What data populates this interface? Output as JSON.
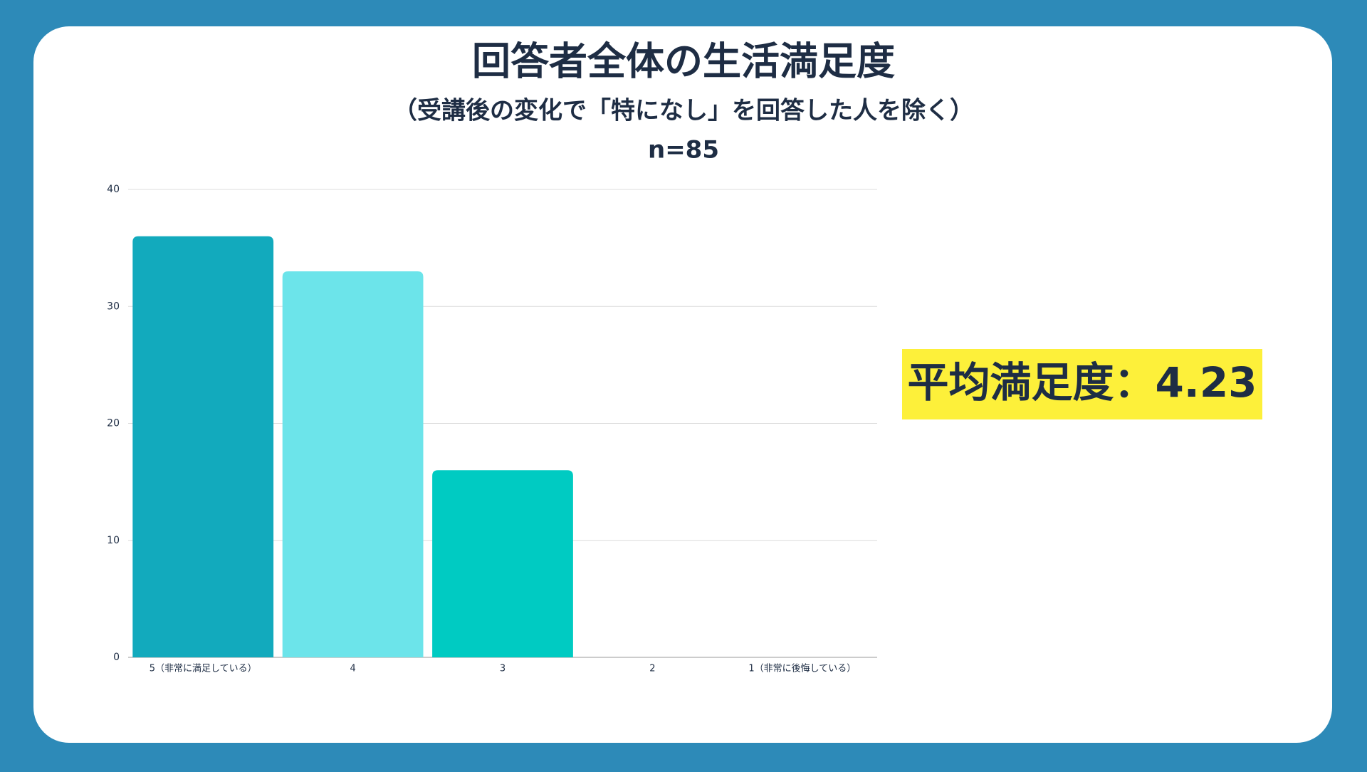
{
  "chart_data": {
    "type": "bar",
    "title": "回答者全体の生活満足度",
    "subtitle": "（受講後の変化で「特になし」を回答した人を除く）",
    "note": "n=85",
    "categories": [
      "5（非常に満足している）",
      "4",
      "3",
      "2",
      "1（非常に後悔している）"
    ],
    "values": [
      36,
      33,
      16,
      0,
      0
    ],
    "colors": [
      "#12aabd",
      "#6ce4ea",
      "#00cbc2"
    ],
    "ylim": [
      0,
      40
    ],
    "yticks": [
      0,
      10,
      20,
      30,
      40
    ],
    "grid": true,
    "annotation": "平均満足度：4.23"
  }
}
